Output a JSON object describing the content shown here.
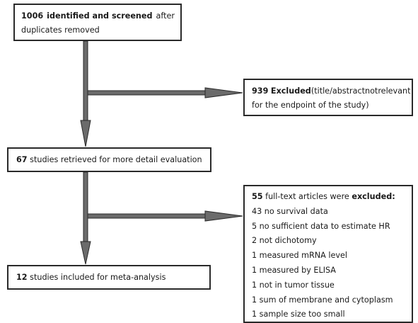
{
  "box1": {
    "line1": {
      "count": "1006",
      "bold": "identified and screened",
      "rest": "after"
    },
    "line2": "duplicates removed"
  },
  "box2": {
    "line1": {
      "count": "939",
      "bold": "Excluded",
      "rest_words": [
        "(title/abstract",
        "not",
        "relevant"
      ]
    },
    "line2": "for the endpoint of the study)"
  },
  "box3": {
    "count": "67",
    "text": "studies retrieved for more detail evaluation"
  },
  "box4": {
    "count": "12",
    "text": "studies included for meta-analysis"
  },
  "box5": {
    "header": {
      "count": "55",
      "text": "full-text articles were",
      "bold": "excluded:"
    },
    "items": [
      "43 no survival data",
      "5 no sufficient data to estimate HR",
      "2 not dichotomy",
      "1 measured mRNA level",
      "1 measured by ELISA",
      "1 not in tumor tissue",
      "1 sum of membrane and cytoplasm",
      "1 sample size too small"
    ]
  }
}
